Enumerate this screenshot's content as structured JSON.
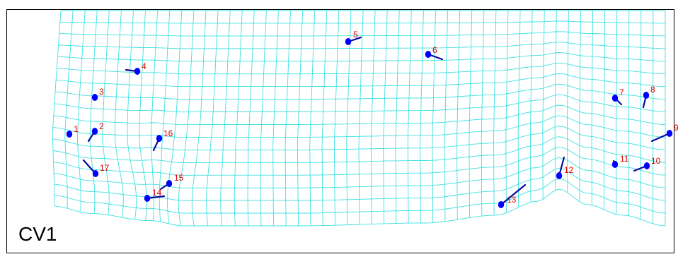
{
  "panel_label": "CV1",
  "colors": {
    "grid": "#40e0e0",
    "landmark": "#0000ff",
    "vector": "#0a0aa0",
    "label": "#dd0000"
  },
  "landmarks": [
    {
      "id": "1",
      "label": "1"
    },
    {
      "id": "2",
      "label": "2"
    },
    {
      "id": "3",
      "label": "3"
    },
    {
      "id": "4",
      "label": "4"
    },
    {
      "id": "5",
      "label": "5"
    },
    {
      "id": "6",
      "label": "6"
    },
    {
      "id": "7",
      "label": "7"
    },
    {
      "id": "8",
      "label": "8"
    },
    {
      "id": "9",
      "label": "9"
    },
    {
      "id": "10",
      "label": "10"
    },
    {
      "id": "11",
      "label": "11"
    },
    {
      "id": "12",
      "label": "12"
    },
    {
      "id": "13",
      "label": "13"
    },
    {
      "id": "14",
      "label": "14"
    },
    {
      "id": "15",
      "label": "15"
    },
    {
      "id": "16",
      "label": "16"
    },
    {
      "id": "17",
      "label": "17"
    }
  ]
}
